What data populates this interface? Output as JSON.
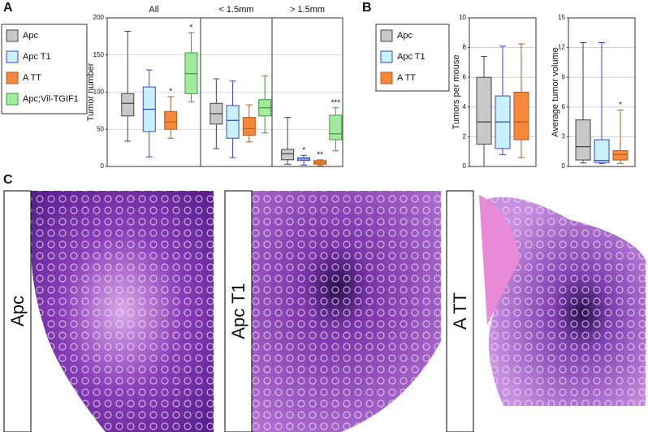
{
  "panel_labels": [
    "A",
    "B",
    "C"
  ],
  "chart_data": [
    {
      "type": "box",
      "ylabel": "Tumor number",
      "categories": [
        "All",
        "< 1.5mm",
        "> 1.5mm"
      ],
      "ylim": [
        0,
        200
      ],
      "yticks": [
        0,
        50,
        100,
        150,
        200
      ],
      "grid": true,
      "series": [
        {
          "name": "Apc",
          "color": "#c8c8c8",
          "edge": "#444444",
          "boxes": [
            [
              34,
              68,
              85,
              98,
              182
            ],
            [
              24,
              57,
              71,
              85,
              118
            ],
            [
              3,
              9,
              17,
              23,
              66
            ]
          ],
          "stars": [
            null,
            null,
            null
          ]
        },
        {
          "name": "Apc T1",
          "color": "#c8f2fb",
          "edge": "#3a46c0",
          "boxes": [
            [
              13,
              47,
              77,
              107,
              130
            ],
            [
              12,
              38,
              62,
              82,
              115
            ],
            [
              2,
              8,
              10,
              12,
              15
            ]
          ],
          "stars": [
            null,
            null,
            "*"
          ]
        },
        {
          "name": "A TT",
          "color": "#f5883a",
          "edge": "#b85a20",
          "boxes": [
            [
              38,
              50,
              60,
              74,
              94
            ],
            [
              33,
              42,
              51,
              66,
              83
            ],
            [
              1,
              3,
              5,
              8,
              9
            ]
          ],
          "stars": [
            "*",
            null,
            "**"
          ]
        },
        {
          "name": "Apc;Vil-TGIF1",
          "color": "#a2eaa0",
          "edge": "#3c9a3c",
          "boxes": [
            [
              87,
              98,
              125,
              153,
              180
            ],
            [
              45,
              68,
              79,
              90,
              122
            ],
            [
              21,
              36,
              44,
              69,
              79
            ]
          ],
          "stars": [
            "*",
            null,
            "***"
          ]
        }
      ]
    },
    {
      "type": "box-panels",
      "grid": true,
      "series": [
        {
          "name": "Apc",
          "color": "#c8c8c8",
          "edge": "#444444"
        },
        {
          "name": "Apc T1",
          "color": "#c8f2fb",
          "edge": "#3a46c0"
        },
        {
          "name": "A TT",
          "color": "#f5883a",
          "edge": "#b85a20"
        }
      ],
      "panels": [
        {
          "ylabel": "Tumors per mouse",
          "ylim": [
            0,
            10
          ],
          "yticks": [
            0,
            2,
            4,
            6,
            8,
            10
          ],
          "boxes": [
            [
              0,
              1.5,
              3,
              6,
              7.4
            ],
            [
              0.8,
              1.2,
              3,
              4.75,
              8.1
            ],
            [
              0.6,
              1.8,
              3,
              5,
              8.25
            ]
          ],
          "stars": [
            null,
            null,
            null
          ]
        },
        {
          "ylabel": "Average tumor volume",
          "ylim": [
            0,
            15
          ],
          "yticks": [
            0,
            3,
            6,
            9,
            12,
            15
          ],
          "boxes": [
            [
              0.35,
              0.65,
              2,
              4.7,
              12.5
            ],
            [
              0.3,
              0.4,
              0.6,
              2.7,
              12.5
            ],
            [
              0.3,
              0.65,
              1.2,
              1.6,
              5.7
            ]
          ],
          "stars": [
            null,
            null,
            "*"
          ]
        }
      ]
    }
  ],
  "images": [
    {
      "label": "Apc"
    },
    {
      "label": "Apc T1"
    },
    {
      "label": "A TT"
    }
  ]
}
